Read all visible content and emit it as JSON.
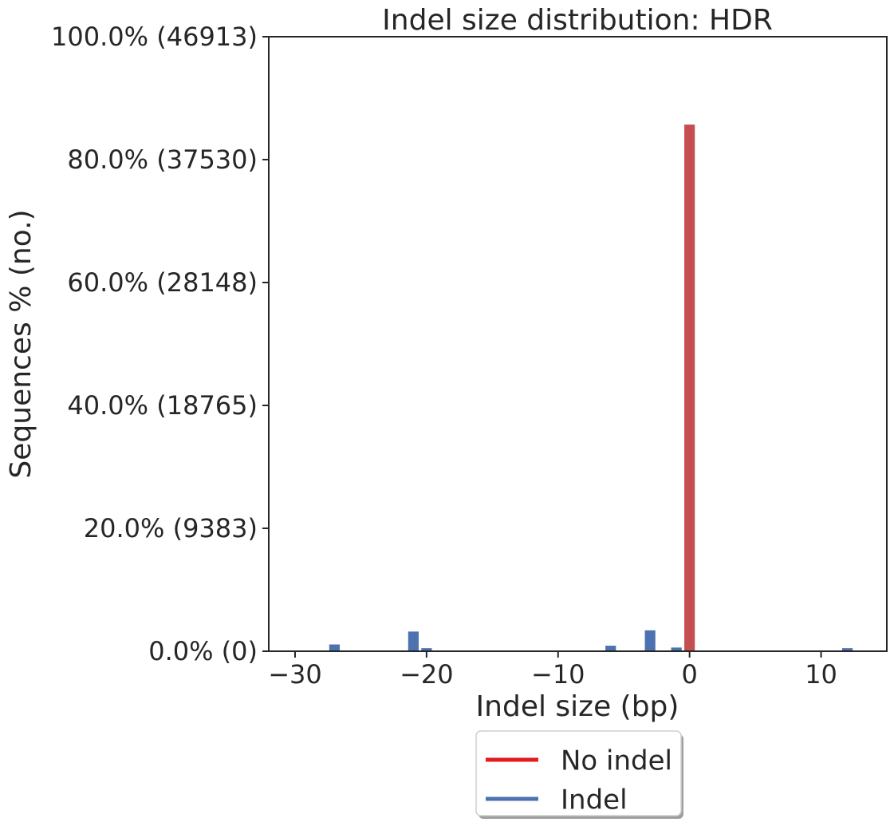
{
  "chart_data": {
    "type": "bar",
    "title": "Indel size distribution: HDR",
    "xlabel": "Indel size (bp)",
    "ylabel": "Sequences % (no.)",
    "xlim": [
      -32,
      15
    ],
    "ylim": [
      0,
      100
    ],
    "xticks": [
      -30,
      -20,
      -10,
      0,
      10
    ],
    "xtick_labels": [
      "−30",
      "−20",
      "−10",
      "0",
      "10"
    ],
    "yticks": [
      0,
      20,
      40,
      60,
      80,
      100
    ],
    "ytick_labels": [
      "0.0% (0)",
      "20.0% (9383)",
      "40.0% (18765)",
      "60.0% (28148)",
      "80.0% (37530)",
      "100.0% (46913)"
    ],
    "grid": false,
    "legend_position": "bottom-center, below axes",
    "series": [
      {
        "name": "No indel",
        "legend_color": "#e41a1c",
        "bar_color": "#c44e52",
        "x": [
          0
        ],
        "values": [
          85.7
        ]
      },
      {
        "name": "Indel",
        "legend_color": "#4c72b0",
        "bar_color": "#4c72b0",
        "x": [
          -27,
          -21,
          -20,
          -6,
          -3,
          -1,
          12
        ],
        "values": [
          1.1,
          3.2,
          0.5,
          0.9,
          3.4,
          0.6,
          0.5
        ]
      }
    ]
  }
}
